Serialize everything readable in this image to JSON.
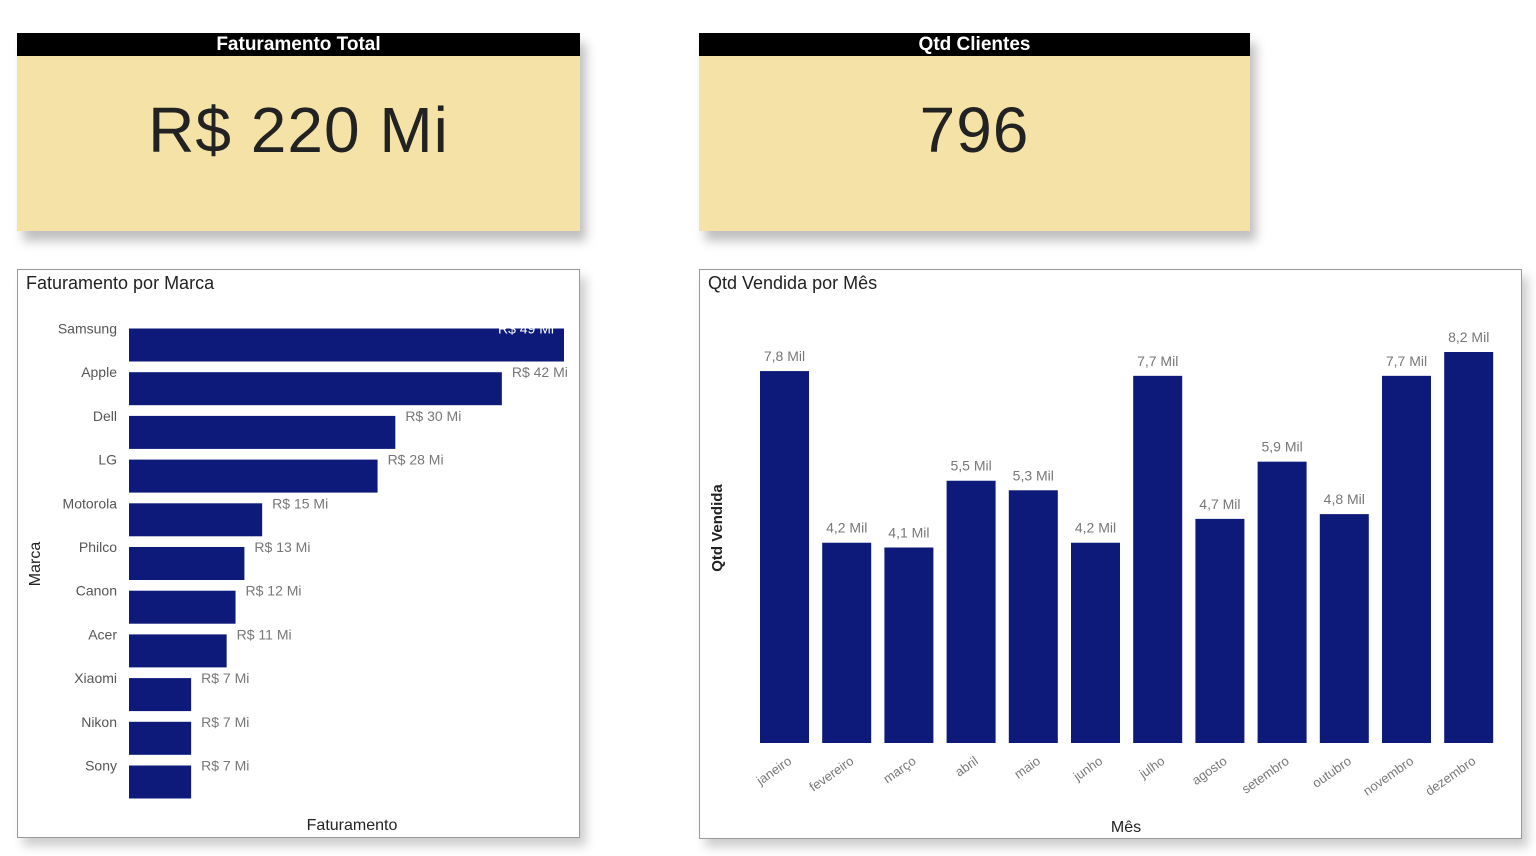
{
  "cards": [
    {
      "title": "Faturamento Total",
      "value": "R$ 220 Mi"
    },
    {
      "title": "Qtd Clientes",
      "value": "796"
    }
  ],
  "chart_data": [
    {
      "type": "bar",
      "orientation": "horizontal",
      "title": "Faturamento por Marca",
      "xlabel": "Faturamento",
      "ylabel": "Marca",
      "unit": "R$ Mi",
      "categories": [
        "Samsung",
        "Apple",
        "Dell",
        "LG",
        "Motorola",
        "Philco",
        "Canon",
        "Acer",
        "Xiaomi",
        "Nikon",
        "Sony"
      ],
      "values": [
        49,
        42,
        30,
        28,
        15,
        13,
        12,
        11,
        7,
        7,
        7
      ],
      "data_labels": [
        "R$ 49 Mi",
        "R$ 42 Mi",
        "R$ 30 Mi",
        "R$ 28 Mi",
        "R$ 15 Mi",
        "R$ 13 Mi",
        "R$ 12 Mi",
        "R$ 11 Mi",
        "R$ 7 Mi",
        "R$ 7 Mi",
        "R$ 7 Mi"
      ],
      "color": "#0d1a7a",
      "grid": false
    },
    {
      "type": "bar",
      "orientation": "vertical",
      "title": "Qtd Vendida por Mês",
      "xlabel": "Mês",
      "ylabel": "Qtd Vendida",
      "unit": "Mil",
      "categories": [
        "janeiro",
        "fevereiro",
        "março",
        "abril",
        "maio",
        "junho",
        "julho",
        "agosto",
        "setembro",
        "outubro",
        "novembro",
        "dezembro"
      ],
      "values": [
        7.8,
        4.2,
        4.1,
        5.5,
        5.3,
        4.2,
        7.7,
        4.7,
        5.9,
        4.8,
        7.7,
        8.2
      ],
      "data_labels": [
        "7,8 Mil",
        "4,2 Mil",
        "4,1 Mil",
        "5,5 Mil",
        "5,3 Mil",
        "4,2 Mil",
        "7,7 Mil",
        "4,7 Mil",
        "5,9 Mil",
        "4,8 Mil",
        "7,7 Mil",
        "8,2 Mil"
      ],
      "color": "#0d1a7a",
      "grid": false
    }
  ]
}
